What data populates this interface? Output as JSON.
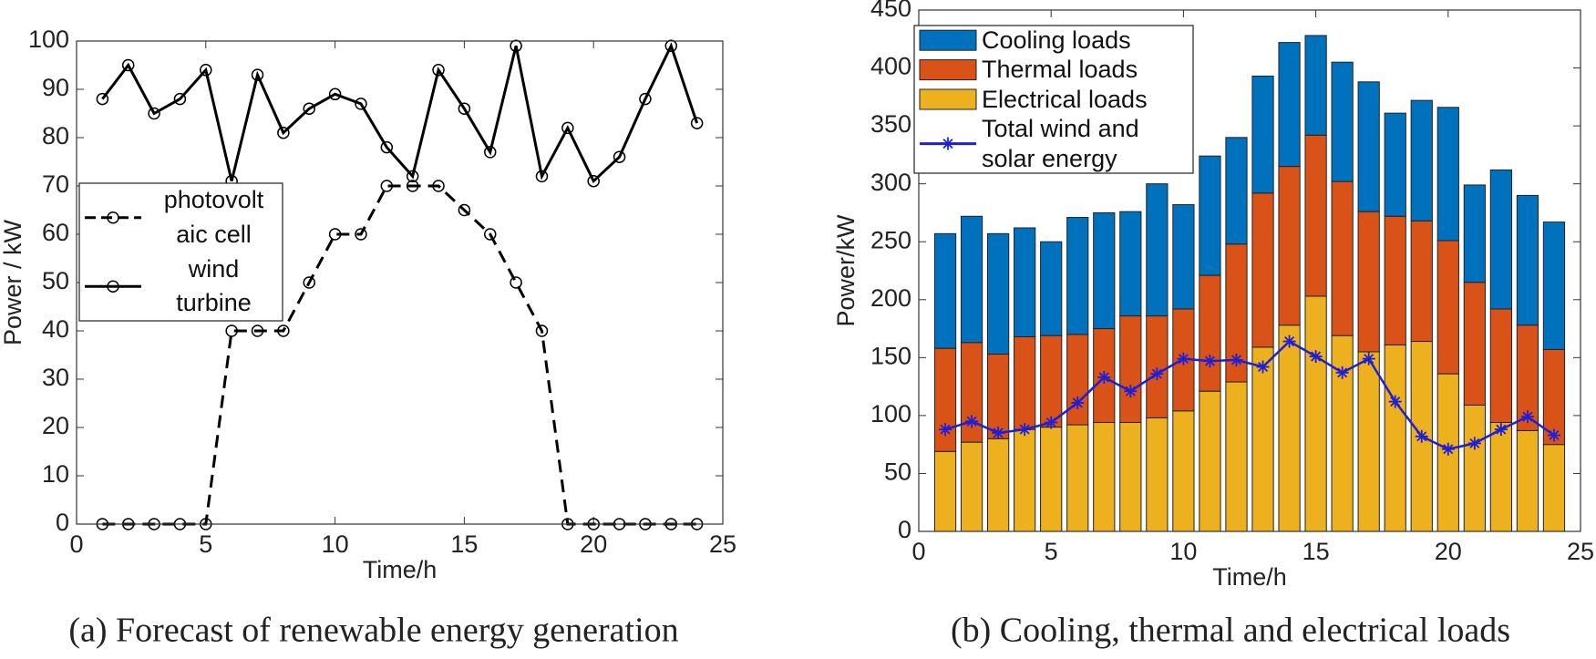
{
  "chart_data": [
    {
      "type": "line",
      "caption": "(a) Forecast of renewable energy generation",
      "x_label": "Time/h",
      "y_label": "Power / kW",
      "x": [
        1,
        2,
        3,
        4,
        5,
        6,
        7,
        8,
        9,
        10,
        11,
        12,
        13,
        14,
        15,
        16,
        17,
        18,
        19,
        20,
        21,
        22,
        23,
        24
      ],
      "series": [
        {
          "name": "photovolt\naic cell",
          "color": "#000000",
          "dash": true,
          "values": [
            0,
            0,
            0,
            0,
            0,
            40,
            40,
            40,
            50,
            60,
            60,
            70,
            70,
            70,
            65,
            60,
            50,
            40,
            0,
            0,
            0,
            0,
            0,
            0
          ]
        },
        {
          "name": "wind\nturbine",
          "color": "#000000",
          "dash": false,
          "values": [
            88,
            95,
            85,
            88,
            94,
            71,
            93,
            81,
            86,
            89,
            87,
            78,
            72,
            94,
            86,
            77,
            99,
            72,
            82,
            71,
            76,
            88,
            99,
            83
          ]
        }
      ],
      "xlim": [
        0,
        25
      ],
      "xticks": [
        0,
        5,
        10,
        15,
        20,
        25
      ],
      "ylim": [
        0,
        100
      ],
      "yticks": [
        0,
        10,
        20,
        30,
        40,
        50,
        60,
        70,
        80,
        90,
        100
      ]
    },
    {
      "type": "bar",
      "stacked": true,
      "caption": "(b) Cooling, thermal and electrical loads",
      "x_label": "Time/h",
      "y_label": "Power/kW",
      "x": [
        1,
        2,
        3,
        4,
        5,
        6,
        7,
        8,
        9,
        10,
        11,
        12,
        13,
        14,
        15,
        16,
        17,
        18,
        19,
        20,
        21,
        22,
        23,
        24
      ],
      "series": [
        {
          "name": "Cooling loads",
          "color": "#0072bd",
          "values": [
            99,
            109,
            104,
            94,
            81,
            101,
            100,
            90,
            114,
            90,
            103,
            92,
            101,
            107,
            86,
            103,
            112,
            89,
            104,
            115,
            84,
            120,
            112,
            110
          ]
        },
        {
          "name": "Thermal loads",
          "color": "#d95319",
          "values": [
            89,
            86,
            73,
            80,
            79,
            78,
            81,
            92,
            88,
            88,
            100,
            119,
            133,
            137,
            139,
            133,
            121,
            111,
            104,
            115,
            106,
            98,
            91,
            82
          ]
        },
        {
          "name": "Electrical loads",
          "color": "#edb120",
          "values": [
            69,
            77,
            80,
            88,
            90,
            92,
            94,
            94,
            98,
            104,
            121,
            129,
            159,
            178,
            203,
            169,
            155,
            161,
            164,
            136,
            109,
            94,
            87,
            75
          ]
        },
        {
          "name": "Total wind and\nsolar energy",
          "type": "line",
          "color": "#1f1fd6",
          "values": [
            88,
            95,
            85,
            88,
            94,
            111,
            133,
            121,
            136,
            149,
            147,
            148,
            142,
            164,
            151,
            137,
            149,
            112,
            82,
            71,
            76,
            88,
            99,
            83
          ]
        }
      ],
      "xlim": [
        0,
        25
      ],
      "xticks": [
        0,
        5,
        10,
        15,
        20,
        25
      ],
      "ylim": [
        0,
        450
      ],
      "yticks": [
        0,
        50,
        100,
        150,
        200,
        250,
        300,
        350,
        400,
        450
      ]
    }
  ]
}
